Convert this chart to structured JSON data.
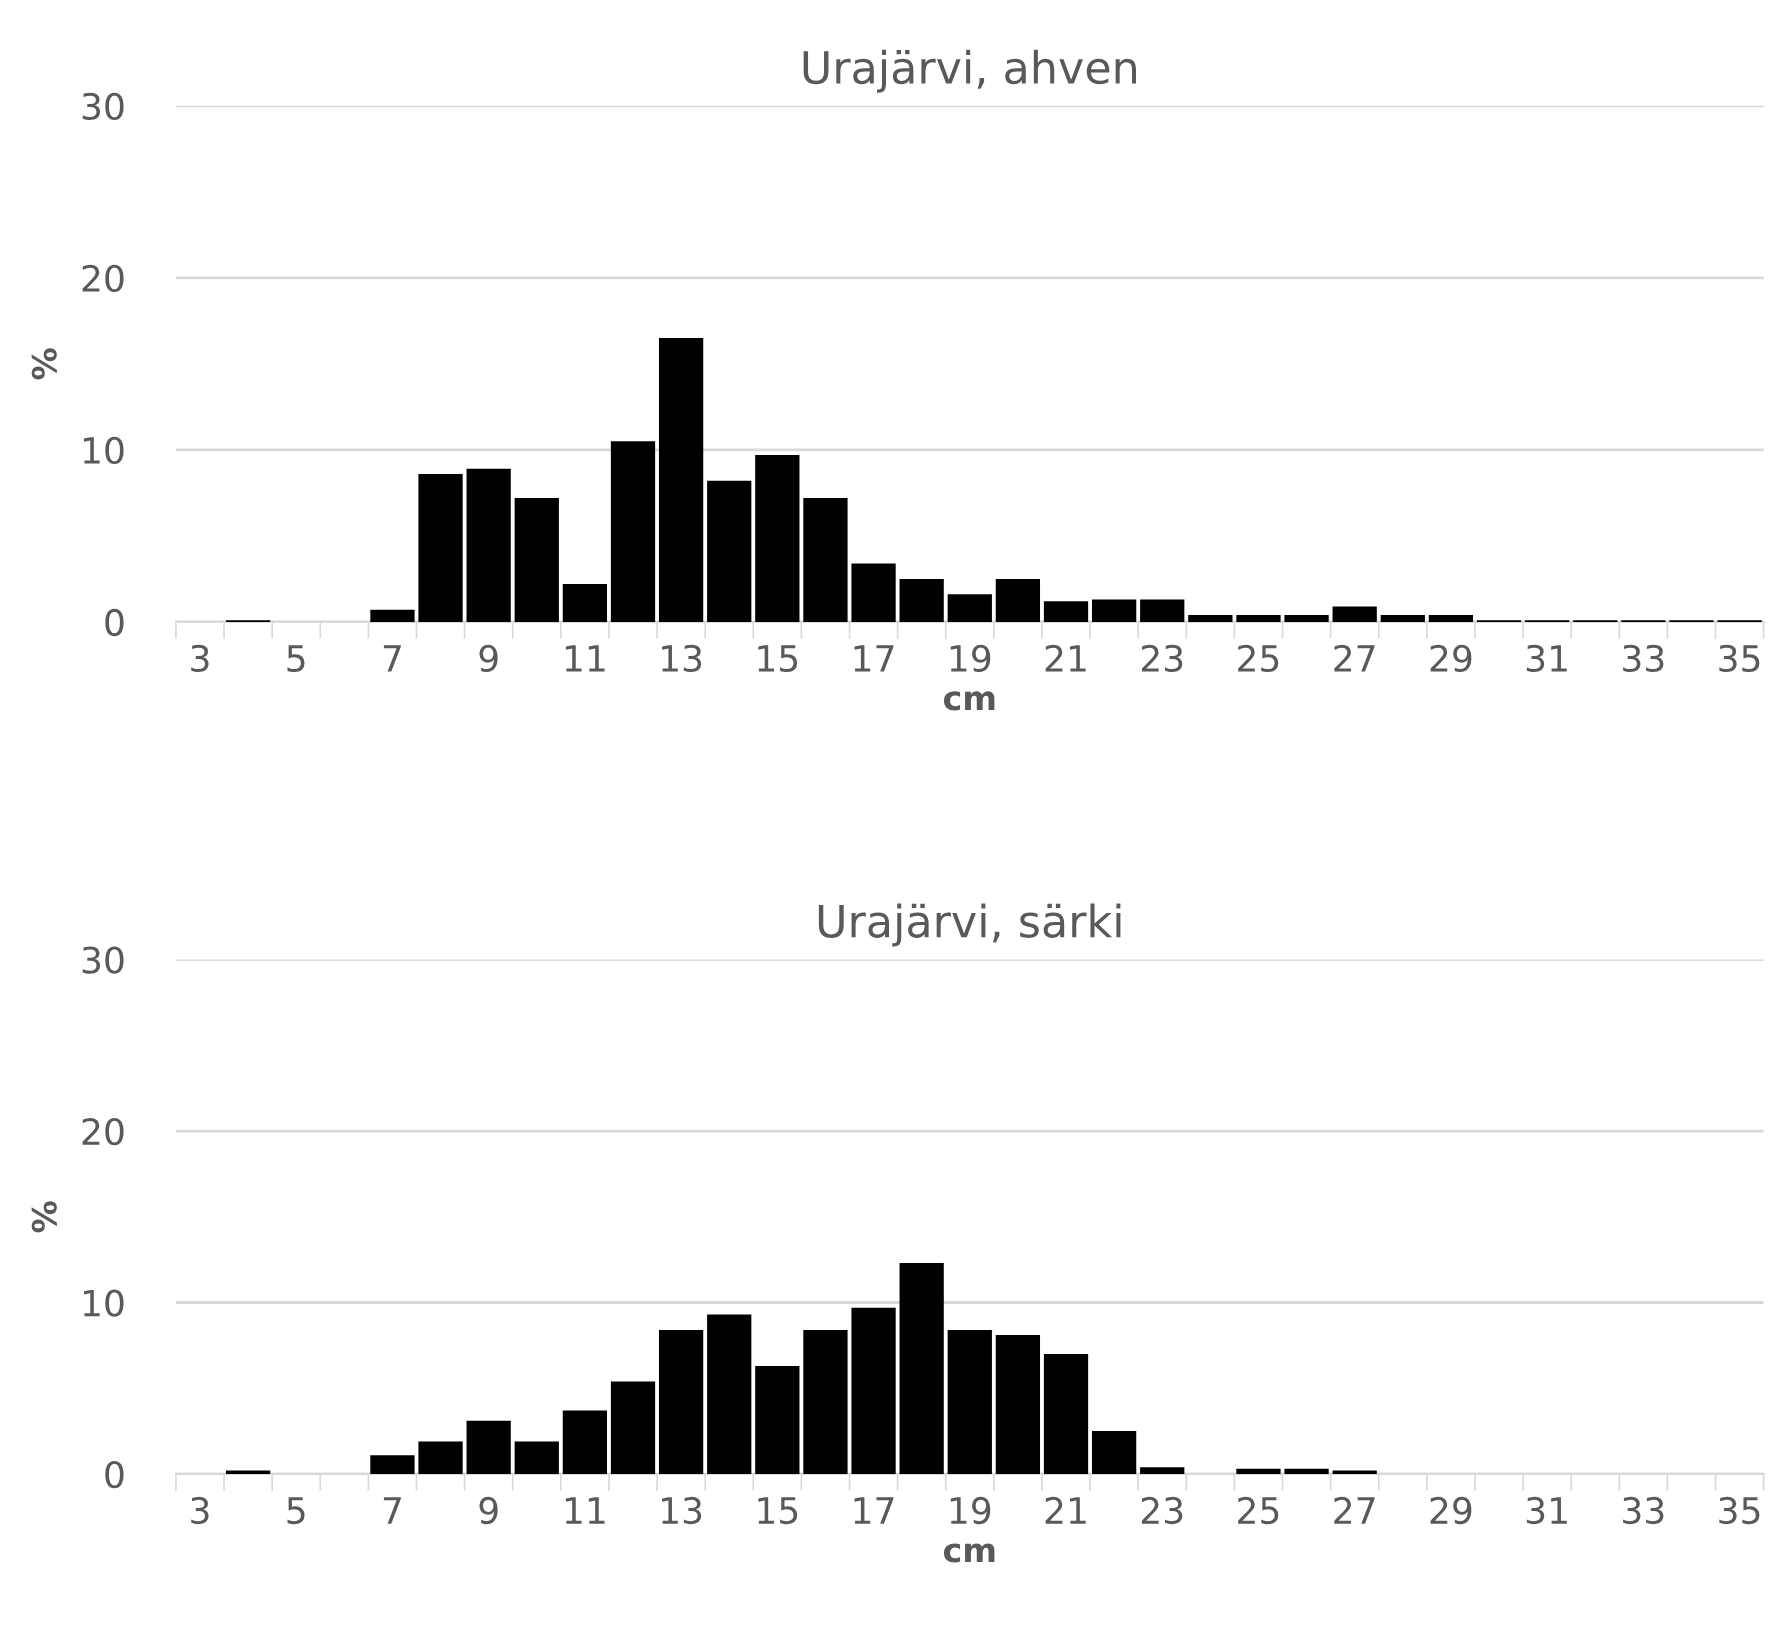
{
  "chart_data": [
    {
      "type": "bar",
      "title": "Urajärvi, ahven",
      "xlabel": "cm",
      "ylabel": "%",
      "categories": [
        "3",
        null,
        "5",
        null,
        "7",
        null,
        "9",
        null,
        "11",
        null,
        "13",
        null,
        "15",
        null,
        "17",
        null,
        "19",
        null,
        "21",
        null,
        "23",
        null,
        "25",
        null,
        "27",
        null,
        "29",
        null,
        "31",
        null,
        "33",
        null,
        "35"
      ],
      "values": [
        0,
        0.1,
        0,
        0,
        0.7,
        8.6,
        8.9,
        7.2,
        2.2,
        10.5,
        16.5,
        8.2,
        9.7,
        7.2,
        3.4,
        2.5,
        1.6,
        2.5,
        1.2,
        1.3,
        1.3,
        0.4,
        0.4,
        0.4,
        0.9,
        0.4,
        0.4,
        0.1,
        0.1,
        0.1,
        0.1,
        0.1,
        0.1
      ],
      "color": "#000000",
      "ylim": [
        0,
        30
      ],
      "yticks": [
        0,
        10,
        20,
        30
      ],
      "grid": "y",
      "legend": false
    },
    {
      "type": "bar",
      "title": "Urajärvi, särki",
      "xlabel": "cm",
      "ylabel": "%",
      "categories": [
        "3",
        null,
        "5",
        null,
        "7",
        null,
        "9",
        null,
        "11",
        null,
        "13",
        null,
        "15",
        null,
        "17",
        null,
        "19",
        null,
        "21",
        null,
        "23",
        null,
        "25",
        null,
        "27",
        null,
        "29",
        null,
        "31",
        null,
        "33",
        null,
        "35"
      ],
      "values": [
        0,
        0.2,
        0,
        0,
        1.1,
        1.9,
        3.1,
        1.9,
        3.7,
        5.4,
        8.4,
        9.3,
        6.3,
        8.4,
        9.7,
        12.3,
        8.4,
        8.1,
        7.0,
        2.5,
        0.4,
        0,
        0.3,
        0.3,
        0.2,
        0,
        0,
        0,
        0,
        0,
        0,
        0,
        0
      ],
      "color": "#000000",
      "ylim": [
        0,
        30
      ],
      "yticks": [
        0,
        10,
        20,
        30
      ],
      "grid": "y",
      "legend": false
    }
  ]
}
